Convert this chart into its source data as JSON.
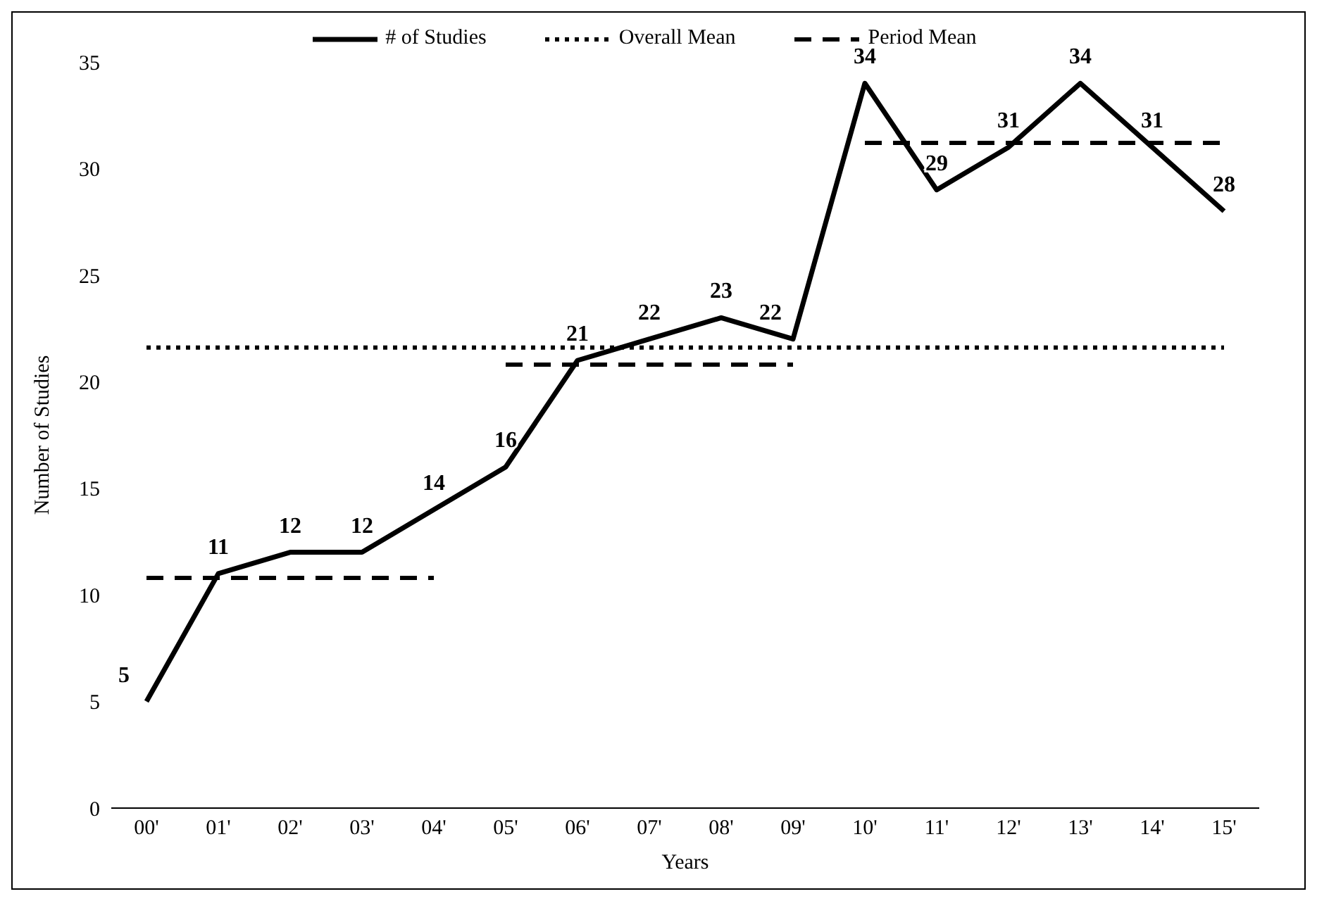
{
  "chart_data": {
    "type": "line",
    "xlabel": "Years",
    "ylabel": "Number of Studies",
    "categories": [
      "00'",
      "01'",
      "02'",
      "03'",
      "04'",
      "05'",
      "06'",
      "07'",
      "08'",
      "09'",
      "10'",
      "11'",
      "12'",
      "13'",
      "14'",
      "15'"
    ],
    "ylim": [
      0,
      35
    ],
    "yticks": [
      0,
      5,
      10,
      15,
      20,
      25,
      30,
      35
    ],
    "grid": false,
    "legend": "top",
    "marker": "none",
    "series": [
      {
        "name": "# of Studies",
        "color": "#000000",
        "line_style": "solid",
        "values": [
          5,
          11,
          12,
          12,
          14,
          16,
          21,
          22,
          23,
          22,
          34,
          29,
          31,
          34,
          31,
          28
        ],
        "value_labels": [
          "5",
          "11",
          "12",
          "12",
          "14",
          "16",
          "21",
          "22",
          "23",
          "22",
          "34",
          "29",
          "31",
          "34",
          "31",
          "28"
        ]
      },
      {
        "name": "Overall Mean",
        "color": "#000000",
        "line_style": "dotted",
        "values": [
          21.6,
          21.6,
          21.6,
          21.6,
          21.6,
          21.6,
          21.6,
          21.6,
          21.6,
          21.6,
          21.6,
          21.6,
          21.6,
          21.6,
          21.6,
          21.6
        ]
      },
      {
        "name": "Period Mean",
        "color": "#000000",
        "line_style": "dashed",
        "values": [
          10.8,
          10.8,
          10.8,
          10.8,
          10.8,
          null,
          null,
          null,
          null,
          null,
          null,
          null,
          null,
          null,
          null,
          null
        ]
      },
      {
        "color": "#000000",
        "line_style": "dashed",
        "values": [
          null,
          null,
          null,
          null,
          null,
          20.8,
          20.8,
          20.8,
          20.8,
          20.8,
          null,
          null,
          null,
          null,
          null,
          null
        ]
      },
      {
        "color": "#000000",
        "line_style": "dashed",
        "values": [
          null,
          null,
          null,
          null,
          null,
          null,
          null,
          null,
          null,
          null,
          31.2,
          31.2,
          31.2,
          31.2,
          31.2,
          31.2
        ]
      }
    ]
  }
}
